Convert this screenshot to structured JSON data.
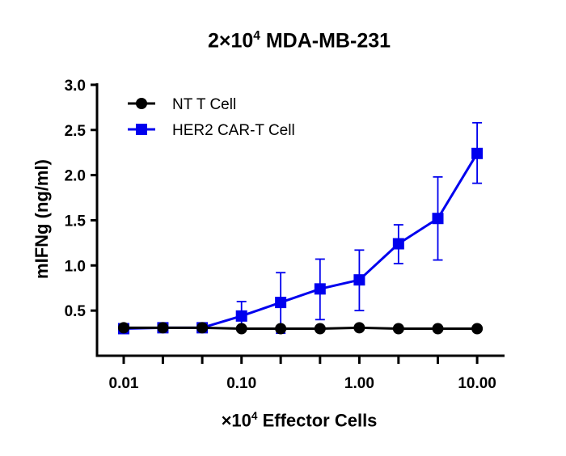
{
  "chart_data": {
    "type": "line",
    "title": {
      "prefix": "2×10",
      "sup": "4",
      "suffix": " MDA-MB-231"
    },
    "xlabel": {
      "prefix": "×10",
      "sup": "4",
      "suffix": " Effector Cells"
    },
    "ylabel": "mIFNg (ng/ml)",
    "x_scale": "log",
    "xlim": [
      0.01,
      10
    ],
    "ylim": [
      0,
      3
    ],
    "x_ticks": [
      0.01,
      0.0215,
      0.0464,
      0.1,
      0.215,
      0.464,
      1,
      2.15,
      4.64,
      10
    ],
    "x_tick_labels": [
      {
        "value": 0.01,
        "label": "0.01"
      },
      {
        "value": 0.1,
        "label": "0.10"
      },
      {
        "value": 1,
        "label": "1.00"
      },
      {
        "value": 10,
        "label": "10.00"
      }
    ],
    "y_ticks": [
      {
        "value": 0.5,
        "label": "0.5"
      },
      {
        "value": 1.0,
        "label": "1.0"
      },
      {
        "value": 1.5,
        "label": "1.5"
      },
      {
        "value": 2.0,
        "label": "2.0"
      },
      {
        "value": 2.5,
        "label": "2.5"
      },
      {
        "value": 3.0,
        "label": "3.0"
      }
    ],
    "grid": false,
    "legend_position": "top-left",
    "x": [
      0.01,
      0.0215,
      0.0464,
      0.1,
      0.215,
      0.464,
      1,
      2.15,
      4.64,
      10
    ],
    "series": [
      {
        "name": "NT T Cell",
        "color": "#000000",
        "marker": "circle",
        "values": [
          0.31,
          0.31,
          0.31,
          0.3,
          0.3,
          0.3,
          0.31,
          0.3,
          0.3,
          0.3
        ],
        "err_low": [
          null,
          null,
          null,
          null,
          null,
          null,
          null,
          null,
          null,
          null
        ],
        "err_high": [
          null,
          null,
          null,
          null,
          null,
          null,
          null,
          null,
          null,
          null
        ]
      },
      {
        "name": "HER2 CAR-T Cell",
        "color": "#0000ee",
        "marker": "square",
        "values": [
          0.3,
          0.31,
          0.31,
          0.44,
          0.59,
          0.74,
          0.84,
          1.24,
          1.52,
          2.24
        ],
        "err_low": [
          null,
          null,
          null,
          0.28,
          0.25,
          0.4,
          0.5,
          1.02,
          1.06,
          1.91
        ],
        "err_high": [
          null,
          null,
          null,
          0.6,
          0.92,
          1.07,
          1.17,
          1.45,
          1.98,
          2.58
        ]
      }
    ]
  }
}
